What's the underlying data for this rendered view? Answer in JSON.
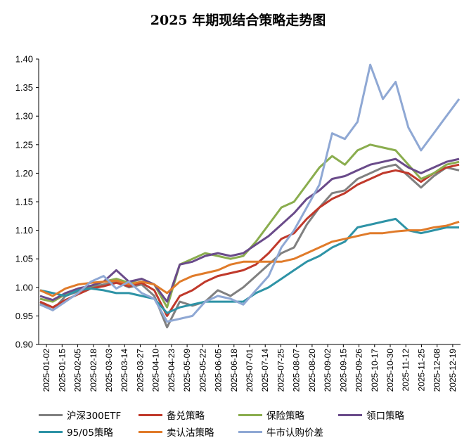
{
  "chart_data": {
    "type": "line",
    "title": "2025 年期现结合策略走势图",
    "xlabel": "",
    "ylabel": "",
    "ylim": [
      0.9,
      1.4
    ],
    "yticks": [
      "0.90",
      "0.95",
      "1.00",
      "1.05",
      "1.10",
      "1.15",
      "1.20",
      "1.25",
      "1.30",
      "1.35",
      "1.40"
    ],
    "x_tick_labels": [
      "2025-01-02",
      "2025-01-15",
      "2025-02-05",
      "2025-02-18",
      "2025-03-03",
      "2025-03-14",
      "2025-03-27",
      "2025-04-10",
      "2025-04-23",
      "2025-05-09",
      "2025-05-22",
      "2025-06-05",
      "2025-06-18",
      "2025-07-01",
      "2025-07-14",
      "2025-07-25",
      "2025-08-07",
      "2025-08-20",
      "2025-09-02",
      "2025-09-15",
      "2025-09-26",
      "2025-10-17",
      "2025-10-30",
      "2025-11-12",
      "2025-11-25",
      "2025-12-08",
      "2025-12-19"
    ],
    "grid": false,
    "legend_position": "bottom",
    "series": [
      {
        "name": "沪深300ETF",
        "color": "#808080",
        "values": [
          0.972,
          0.96,
          0.985,
          0.993,
          1.0,
          1.005,
          1.01,
          1.0,
          1.005,
          0.985,
          0.93,
          0.975,
          0.968,
          0.975,
          0.995,
          0.985,
          1.0,
          1.02,
          1.04,
          1.06,
          1.07,
          1.11,
          1.14,
          1.165,
          1.17,
          1.19,
          1.2,
          1.21,
          1.215,
          1.195,
          1.175,
          1.195,
          1.21,
          1.205
        ]
      },
      {
        "name": "备兑策略",
        "color": "#c0392b",
        "values": [
          0.975,
          0.965,
          0.978,
          0.988,
          0.998,
          1.002,
          1.008,
          1.002,
          1.008,
          0.995,
          0.95,
          0.985,
          0.995,
          1.01,
          1.02,
          1.025,
          1.03,
          1.04,
          1.06,
          1.085,
          1.095,
          1.12,
          1.14,
          1.155,
          1.165,
          1.18,
          1.19,
          1.2,
          1.205,
          1.2,
          1.185,
          1.2,
          1.21,
          1.215
        ]
      },
      {
        "name": "保险策略",
        "color": "#8aad4e",
        "values": [
          0.98,
          0.975,
          0.988,
          0.995,
          1.002,
          1.01,
          1.015,
          1.008,
          1.015,
          1.005,
          0.965,
          1.04,
          1.05,
          1.06,
          1.055,
          1.05,
          1.055,
          1.08,
          1.11,
          1.14,
          1.15,
          1.18,
          1.21,
          1.23,
          1.215,
          1.24,
          1.25,
          1.245,
          1.24,
          1.215,
          1.19,
          1.2,
          1.215,
          1.22
        ]
      },
      {
        "name": "领口策略",
        "color": "#6a4b8a",
        "values": [
          0.985,
          0.978,
          0.99,
          0.998,
          1.003,
          1.01,
          1.03,
          1.01,
          1.015,
          1.005,
          0.975,
          1.04,
          1.045,
          1.055,
          1.06,
          1.055,
          1.06,
          1.075,
          1.09,
          1.11,
          1.13,
          1.155,
          1.17,
          1.19,
          1.195,
          1.205,
          1.215,
          1.22,
          1.225,
          1.21,
          1.2,
          1.21,
          1.22,
          1.225
        ]
      },
      {
        "name": "95/05策略",
        "color": "#2e93a6",
        "values": [
          0.995,
          0.99,
          0.985,
          0.995,
          0.998,
          0.995,
          0.99,
          0.99,
          0.985,
          0.98,
          0.955,
          0.965,
          0.97,
          0.975,
          0.975,
          0.975,
          0.975,
          0.99,
          1.0,
          1.015,
          1.03,
          1.045,
          1.055,
          1.07,
          1.08,
          1.105,
          1.11,
          1.115,
          1.12,
          1.1,
          1.095,
          1.1,
          1.105,
          1.105
        ]
      },
      {
        "name": "卖认沽策略",
        "color": "#e07b2a",
        "values": [
          0.995,
          0.985,
          0.998,
          1.005,
          1.008,
          1.01,
          1.012,
          1.005,
          1.01,
          1.005,
          0.99,
          1.01,
          1.02,
          1.025,
          1.03,
          1.04,
          1.045,
          1.045,
          1.045,
          1.045,
          1.05,
          1.06,
          1.07,
          1.08,
          1.085,
          1.09,
          1.095,
          1.095,
          1.098,
          1.1,
          1.1,
          1.105,
          1.108,
          1.115
        ]
      },
      {
        "name": "牛市认购价差",
        "color": "#8fa8d4",
        "values": [
          0.97,
          0.96,
          0.975,
          0.99,
          1.01,
          1.02,
          0.998,
          1.01,
          0.99,
          0.98,
          0.94,
          0.945,
          0.95,
          0.975,
          0.985,
          0.98,
          0.97,
          0.995,
          1.02,
          1.07,
          1.1,
          1.14,
          1.18,
          1.27,
          1.26,
          1.29,
          1.39,
          1.33,
          1.36,
          1.28,
          1.24,
          1.27,
          1.3,
          1.33
        ]
      }
    ]
  }
}
